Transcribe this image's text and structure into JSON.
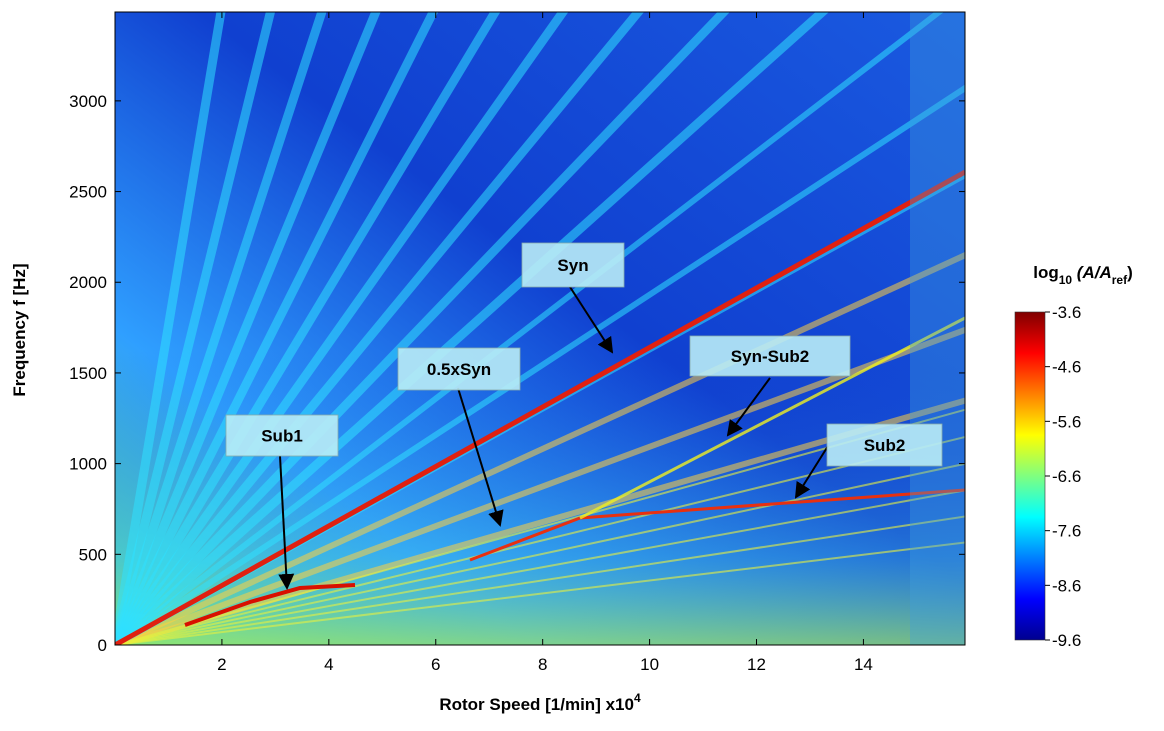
{
  "chart_data": {
    "type": "heatmap",
    "xlabel": {
      "text": "Rotor Speed [1/min] x10",
      "sup": "4"
    },
    "ylabel": "Frequency f [Hz]",
    "xlim": [
      0,
      15.9
    ],
    "xticks": [
      2,
      4,
      6,
      8,
      10,
      12,
      14
    ],
    "ylim": [
      0,
      3490
    ],
    "yticks": [
      0,
      500,
      1000,
      1500,
      2000,
      2500,
      3000
    ],
    "colorbar": {
      "title": {
        "base": "log",
        "sub1": "10",
        "mid": " (A/A",
        "sub2": "ref",
        "end": ")"
      },
      "clim": [
        -9.6,
        -3.6
      ],
      "ticks": [
        -3.6,
        -4.6,
        -5.6,
        -6.6,
        -7.6,
        -8.6,
        -9.6
      ],
      "colormap": "jet"
    },
    "annotations": [
      "Syn",
      "0.5xSyn",
      "Syn-Sub2",
      "Sub1",
      "Sub2"
    ]
  }
}
